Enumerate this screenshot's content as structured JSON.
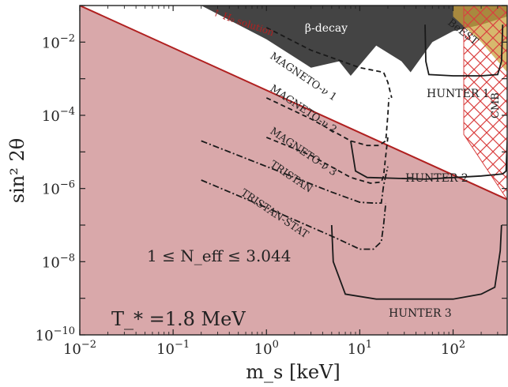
{
  "chart_data": {
    "type": "line",
    "xlabel": "m_s [keV]",
    "ylabel": "sin² 2θ",
    "xscale": "log",
    "yscale": "log",
    "xlim": [
      0.01,
      380
    ],
    "ylim": [
      1e-10,
      0.1
    ],
    "grid": false,
    "x_ticks": [
      {
        "base": "10",
        "exp": "−2"
      },
      {
        "base": "10",
        "exp": "−1"
      },
      {
        "base": "10",
        "exp": "0"
      },
      {
        "base": "10",
        "exp": "1"
      },
      {
        "base": "10",
        "exp": "2"
      }
    ],
    "y_ticks": [
      {
        "base": "10",
        "exp": "−2"
      },
      {
        "base": "10",
        "exp": "−4"
      },
      {
        "base": "10",
        "exp": "−6"
      },
      {
        "base": "10",
        "exp": "−8"
      },
      {
        "base": "10",
        "exp": "−10"
      }
    ],
    "regions": [
      {
        "name": "1 ≤ N_eff ≤ 3.044",
        "color": "#d9a8aa",
        "boundary": [
          [
            0.01,
            0.1
          ],
          [
            380,
            5e-07
          ]
        ]
      },
      {
        "name": "β-decay",
        "color": "#444444",
        "boundary": [
          [
            0.2,
            0.1
          ],
          [
            1.0,
            0.012
          ],
          [
            3.0,
            0.002
          ],
          [
            6.0,
            0.003
          ],
          [
            8.0,
            0.0012
          ],
          [
            15.0,
            0.008
          ],
          [
            28.0,
            0.003
          ],
          [
            35.0,
            0.0015
          ],
          [
            60.0,
            0.01
          ],
          [
            100.0,
            0.02
          ],
          [
            200.0,
            0.03
          ],
          [
            380.0,
            0.05
          ]
        ]
      },
      {
        "name": "BeEST",
        "color": "#c9a03c",
        "boundary": [
          [
            100.0,
            0.1
          ],
          [
            380.0,
            0.1
          ],
          [
            380.0,
            0.0015
          ],
          [
            200.0,
            0.01
          ],
          [
            100.0,
            0.05
          ]
        ]
      },
      {
        "name": "CMB",
        "color": "#d94040",
        "boundary": [
          [
            130.0,
            0.1
          ],
          [
            380.0,
            0.1
          ],
          [
            380.0,
            5e-07
          ],
          [
            130.0,
            3e-05
          ]
        ]
      }
    ],
    "h0_line": {
      "name": "↑ H₀ solution",
      "color": "#b02020",
      "points": [
        [
          0.01,
          0.1
        ],
        [
          380,
          5e-07
        ]
      ]
    },
    "series": [
      {
        "name": "MAGNETO-ν 1",
        "style": "dashed",
        "points": [
          [
            1.0,
            0.025
          ],
          [
            3.0,
            0.006
          ],
          [
            10.0,
            0.002
          ],
          [
            14.0,
            0.0017
          ],
          [
            18.0,
            0.0015
          ],
          [
            20.0,
            0.0008
          ],
          [
            22.0,
            0.0003
          ]
        ]
      },
      {
        "name": "MAGNETO-ν 2",
        "style": "dashed",
        "points": [
          [
            1.0,
            0.0003
          ],
          [
            3.0,
            8e-05
          ],
          [
            8.0,
            2e-05
          ],
          [
            12.0,
            1.5e-05
          ],
          [
            16.0,
            1.5e-05
          ],
          [
            19.0,
            2e-05
          ],
          [
            20.0,
            0.0001
          ],
          [
            20.5,
            0.0003
          ]
        ]
      },
      {
        "name": "MAGNETO-ν 3",
        "style": "dashed",
        "points": [
          [
            1.0,
            2.5e-05
          ],
          [
            3.0,
            8e-06
          ],
          [
            8.0,
            2e-06
          ],
          [
            13.0,
            1.4e-06
          ],
          [
            17.0,
            1.5e-06
          ],
          [
            18.0,
            2.2e-06
          ],
          [
            19.0,
            8e-06
          ],
          [
            20.0,
            2.5e-05
          ]
        ]
      },
      {
        "name": "TRISTAN",
        "style": "dashdot",
        "points": [
          [
            0.2,
            2e-05
          ],
          [
            1.0,
            4e-06
          ],
          [
            5.0,
            8e-07
          ],
          [
            10.0,
            4.2e-07
          ],
          [
            14.0,
            4e-07
          ],
          [
            17.0,
            4e-07
          ],
          [
            18.0,
            1.2e-06
          ],
          [
            20.0,
            4e-06
          ]
        ]
      },
      {
        "name": "TRISTAN-STAT",
        "style": "dashdot",
        "points": [
          [
            0.2,
            1.7e-06
          ],
          [
            1.0,
            3e-07
          ],
          [
            5.0,
            5e-08
          ],
          [
            10.0,
            2.2e-08
          ],
          [
            14.0,
            2.2e-08
          ],
          [
            17.0,
            3.5e-08
          ],
          [
            18.0,
            1e-07
          ],
          [
            19.0,
            4e-07
          ]
        ]
      },
      {
        "name": "HUNTER 1",
        "style": "solid",
        "points": [
          [
            50.0,
            0.03
          ],
          [
            51.0,
            0.003
          ],
          [
            55.0,
            0.0013
          ],
          [
            100.0,
            0.0012
          ],
          [
            200.0,
            0.0012
          ],
          [
            300.0,
            0.0013
          ],
          [
            330.0,
            0.003
          ],
          [
            340.0,
            0.03
          ]
        ]
      },
      {
        "name": "HUNTER 2",
        "style": "solid",
        "points": [
          [
            8.0,
            2e-05
          ],
          [
            9.0,
            3e-06
          ],
          [
            12.0,
            2e-06
          ],
          [
            50.0,
            1.8e-06
          ],
          [
            200.0,
            2.2e-06
          ],
          [
            340.0,
            2.5e-06
          ],
          [
            370.0,
            3e-06
          ],
          [
            380.0,
            2e-05
          ]
        ]
      },
      {
        "name": "HUNTER 3",
        "style": "solid",
        "points": [
          [
            5.0,
            1e-07
          ],
          [
            5.2,
            1e-08
          ],
          [
            7.0,
            1.3e-09
          ],
          [
            15.0,
            9.5e-10
          ],
          [
            100.0,
            9.5e-10
          ],
          [
            200.0,
            1.3e-09
          ],
          [
            280.0,
            2e-09
          ],
          [
            320.0,
            2e-08
          ],
          [
            330.0,
            1e-07
          ]
        ]
      }
    ],
    "annotations": {
      "beta_decay": "β-decay",
      "best": "BeEST",
      "cmb": "CMB",
      "h0": "↑ H₀ solution",
      "magneto1": "MAGNETO-ν 1",
      "magneto2": "MAGNETO-ν 2",
      "magneto3": "MAGNETO-ν 3",
      "tristan": "TRISTAN",
      "tristan_stat": "TRISTAN-STAT",
      "hunter1": "HUNTER 1",
      "hunter2": "HUNTER 2",
      "hunter3": "HUNTER 3",
      "neff": "1 ≤ N_eff ≤ 3.044",
      "tstar": "T_* =1.8 MeV"
    }
  }
}
